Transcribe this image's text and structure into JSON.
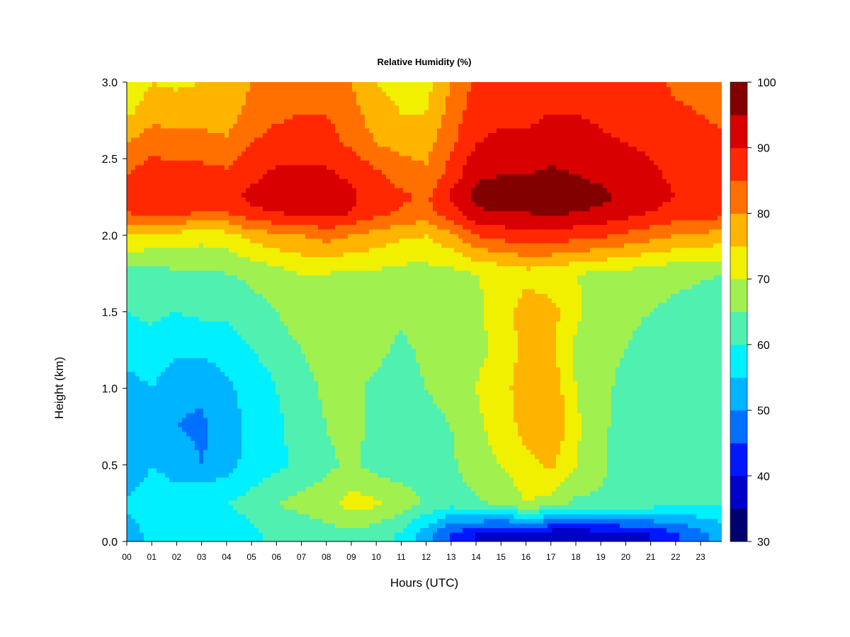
{
  "chart_data": {
    "type": "heatmap",
    "title": "Relative Humidity (%)",
    "xlabel": "Hours (UTC)",
    "ylabel": "Height (km)",
    "x_ticks": [
      "00",
      "01",
      "02",
      "03",
      "04",
      "05",
      "06",
      "07",
      "08",
      "09",
      "10",
      "11",
      "12",
      "13",
      "14",
      "15",
      "16",
      "17",
      "18",
      "19",
      "20",
      "21",
      "22",
      "23"
    ],
    "y_ticks": [
      "0.0",
      "0.5",
      "1.0",
      "1.5",
      "2.0",
      "2.5",
      "3.0"
    ],
    "xlim": [
      0,
      23.85
    ],
    "ylim": [
      0,
      3.0
    ],
    "colorbar": {
      "ticks": [
        "30",
        "40",
        "50",
        "60",
        "70",
        "80",
        "90",
        "100"
      ],
      "range": [
        30,
        100
      ],
      "levels": [
        30,
        35,
        40,
        45,
        50,
        55,
        60,
        65,
        70,
        75,
        80,
        85,
        90,
        95,
        100
      ],
      "colors": [
        "#00006e",
        "#0000c8",
        "#0018ff",
        "#0070ff",
        "#00b4ff",
        "#00f0ff",
        "#50f0b0",
        "#a0f050",
        "#f0f000",
        "#ffb400",
        "#ff7000",
        "#ff2800",
        "#d80000",
        "#820000"
      ]
    },
    "height_km": [
      0.05,
      0.25,
      0.5,
      0.75,
      1.0,
      1.25,
      1.5,
      1.75,
      2.0,
      2.15,
      2.25,
      2.4,
      2.6,
      2.8,
      3.0
    ],
    "hour_utc": [
      0,
      1,
      2,
      3,
      4,
      5,
      6,
      7,
      8,
      9,
      10,
      11,
      12,
      13,
      14,
      15,
      16,
      17,
      18,
      19,
      20,
      21,
      22,
      23.85
    ],
    "rh_percent": [
      [
        52,
        57,
        57,
        58,
        56,
        59,
        61,
        61,
        63,
        64,
        62,
        59,
        52,
        44,
        40,
        37,
        37,
        36,
        36,
        37,
        38,
        40,
        44,
        52
      ],
      [
        56,
        58,
        57,
        60,
        60,
        62,
        65,
        67,
        68,
        72,
        71,
        68,
        64,
        62,
        64,
        66,
        70,
        68,
        64,
        64,
        64,
        63,
        61,
        60
      ],
      [
        51,
        55,
        53,
        50,
        53,
        57,
        59,
        61,
        64,
        66,
        63,
        62,
        64,
        64,
        68,
        70,
        73,
        76,
        70,
        66,
        63,
        60,
        60,
        61
      ],
      [
        51,
        55,
        50,
        49,
        52,
        57,
        59,
        62,
        65,
        67,
        63,
        62,
        64,
        65,
        69,
        72,
        77,
        80,
        71,
        66,
        63,
        61,
        60,
        60
      ],
      [
        53,
        55,
        51,
        51,
        54,
        57,
        60,
        63,
        66,
        66,
        64,
        63,
        65,
        66,
        70,
        73,
        78,
        79,
        70,
        66,
        64,
        62,
        61,
        60
      ],
      [
        57,
        58,
        56,
        56,
        57,
        60,
        62,
        65,
        67,
        67,
        66,
        64,
        66,
        67,
        69,
        71,
        77,
        76,
        69,
        66,
        65,
        63,
        62,
        61
      ],
      [
        60,
        61,
        60,
        61,
        61,
        63,
        65,
        68,
        69,
        68,
        67,
        66,
        67,
        67,
        69,
        72,
        78,
        77,
        71,
        67,
        66,
        65,
        64,
        63
      ],
      [
        63,
        63,
        64,
        64,
        65,
        66,
        68,
        70,
        70,
        69,
        69,
        68,
        68,
        68,
        70,
        71,
        73,
        72,
        70,
        69,
        68,
        67,
        66,
        65
      ],
      [
        75,
        74,
        73,
        72,
        73,
        77,
        79,
        80,
        82,
        80,
        78,
        76,
        75,
        79,
        85,
        87,
        88,
        88,
        87,
        86,
        84,
        82,
        80,
        78
      ],
      [
        85,
        87,
        86,
        85,
        85,
        89,
        90,
        91,
        92,
        90,
        87,
        84,
        83,
        88,
        94,
        95,
        95,
        96,
        95,
        94,
        92,
        90,
        88,
        87
      ],
      [
        89,
        90,
        88,
        89,
        89,
        91,
        92,
        93,
        93,
        91,
        88,
        86,
        84,
        91,
        97,
        97,
        97,
        98,
        97,
        96,
        94,
        92,
        90,
        89
      ],
      [
        85,
        88,
        87,
        87,
        86,
        89,
        91,
        91,
        91,
        89,
        86,
        83,
        81,
        87,
        94,
        95,
        95,
        96,
        95,
        94,
        93,
        91,
        89,
        88
      ],
      [
        80,
        83,
        82,
        82,
        81,
        85,
        87,
        87,
        87,
        84,
        80,
        78,
        78,
        84,
        90,
        91,
        91,
        92,
        92,
        91,
        90,
        89,
        87,
        86
      ],
      [
        74,
        78,
        78,
        78,
        77,
        82,
        84,
        85,
        85,
        82,
        77,
        75,
        75,
        82,
        88,
        89,
        89,
        90,
        90,
        89,
        88,
        88,
        86,
        84
      ],
      [
        70,
        75,
        74,
        75,
        75,
        80,
        82,
        83,
        83,
        80,
        75,
        73,
        73,
        80,
        86,
        88,
        88,
        89,
        89,
        88,
        87,
        86,
        84,
        82
      ]
    ]
  }
}
